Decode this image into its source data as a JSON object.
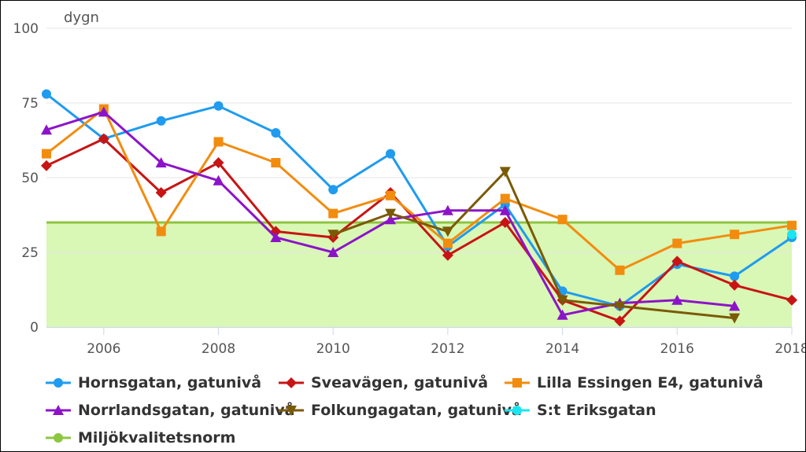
{
  "chart_data": {
    "type": "line",
    "title": "",
    "xlabel": "",
    "ylabel": "dygn",
    "xlim": [
      2005,
      2018
    ],
    "ylim": [
      0,
      100
    ],
    "x_ticks": [
      2006,
      2008,
      2010,
      2012,
      2014,
      2016,
      2018
    ],
    "y_ticks": [
      0,
      25,
      50,
      75,
      100
    ],
    "grid": true,
    "legend_position": "bottom",
    "threshold": {
      "name": "Miljökvalitetsnorm",
      "value": 35,
      "color": "#8dc63f",
      "fill": "#d9f7b5"
    },
    "series": [
      {
        "name": "Hornsgatan, gatunivå",
        "color": "#1f9bef",
        "marker": "circle",
        "x": [
          2005,
          2006,
          2007,
          2008,
          2009,
          2010,
          2011,
          2012,
          2013,
          2014,
          2015,
          2016,
          2017,
          2018
        ],
        "y": [
          78,
          63,
          69,
          74,
          65,
          46,
          58,
          27,
          41,
          12,
          7,
          21,
          17,
          30
        ]
      },
      {
        "name": "Sveavägen, gatunivå",
        "color": "#c81414",
        "marker": "diamond",
        "x": [
          2005,
          2006,
          2007,
          2008,
          2009,
          2010,
          2011,
          2012,
          2013,
          2014,
          2015,
          2016,
          2017,
          2018
        ],
        "y": [
          54,
          63,
          45,
          55,
          32,
          30,
          45,
          24,
          35,
          9,
          2,
          22,
          14,
          9
        ]
      },
      {
        "name": "Lilla Essingen E4, gatunivå",
        "color": "#f28c0f",
        "marker": "square",
        "x": [
          2005,
          2006,
          2007,
          2008,
          2009,
          2010,
          2011,
          2012,
          2013,
          2014,
          2015,
          2016,
          2017,
          2018
        ],
        "y": [
          58,
          73,
          32,
          62,
          55,
          38,
          44,
          28,
          43,
          36,
          19,
          28,
          31,
          34
        ]
      },
      {
        "name": "Norrlandsgatan, gatunivå",
        "color": "#8c14c8",
        "marker": "triangle",
        "x": [
          2005,
          2006,
          2007,
          2008,
          2009,
          2010,
          2011,
          2012,
          2013,
          2014,
          2015,
          2016,
          2017
        ],
        "y": [
          66,
          72,
          55,
          49,
          30,
          25,
          36,
          39,
          39,
          4,
          8,
          9,
          7
        ]
      },
      {
        "name": "Folkungagatan, gatunivå",
        "color": "#7a5a05",
        "marker": "triangle-down",
        "x": [
          2010,
          2011,
          2012,
          2013,
          2014,
          2015,
          2017
        ],
        "y": [
          31,
          38,
          32,
          52,
          9,
          7,
          3
        ]
      },
      {
        "name": "S:t Eriksgatan",
        "color": "#19e6f0",
        "marker": "circle",
        "x": [
          2018
        ],
        "y": [
          31
        ]
      },
      {
        "name": "Miljökvalitetsnorm",
        "color": "#8dc63f",
        "marker": "circle",
        "x": [],
        "y": []
      }
    ]
  }
}
